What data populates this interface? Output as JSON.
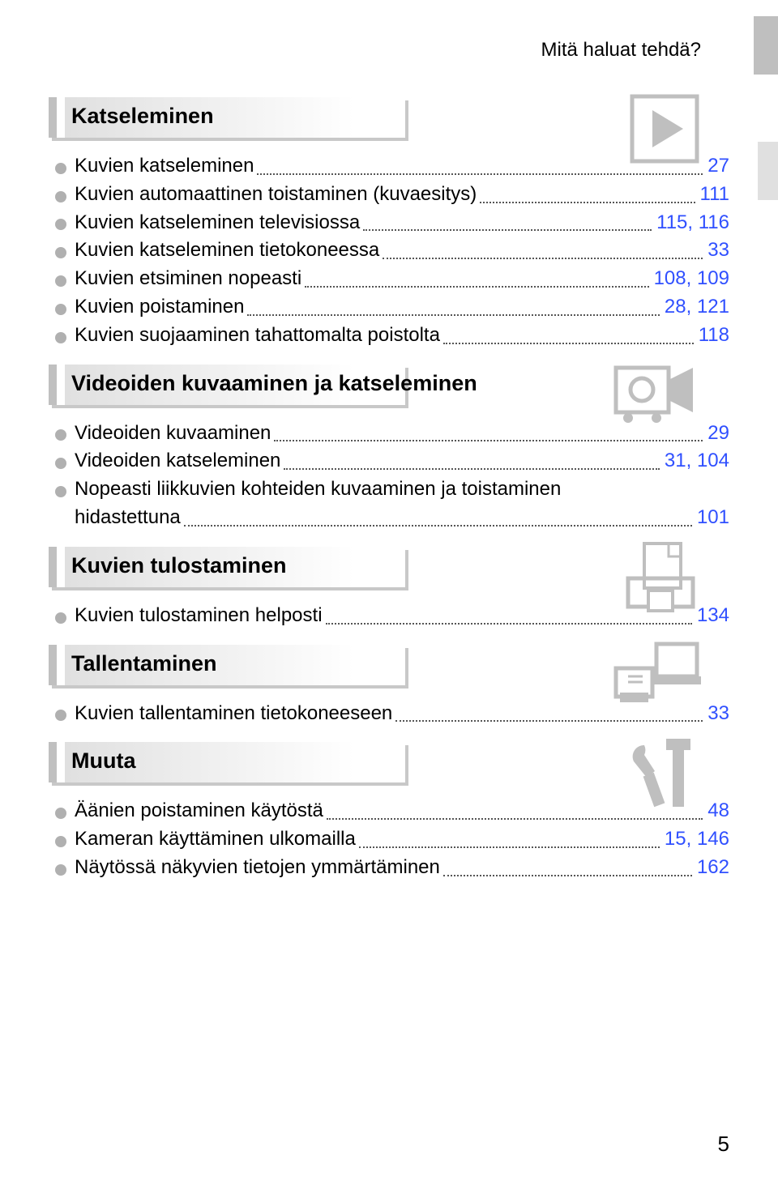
{
  "header": "Mitä haluat tehdä?",
  "footer_page": "5",
  "colors": {
    "page_link": "#3050ff",
    "bullet": "#b0b0b0",
    "shadow": "#c8c8c8",
    "icon": "#bfbfbf"
  },
  "sections": [
    {
      "title": "Katseleminen",
      "icon": "play",
      "items": [
        {
          "label": "Kuvien katseleminen",
          "page": "27"
        },
        {
          "label": "Kuvien automaattinen toistaminen (kuvaesitys)",
          "page": "111"
        },
        {
          "label": "Kuvien katseleminen televisiossa",
          "page": "115, 116"
        },
        {
          "label": "Kuvien katseleminen tietokoneessa",
          "page": "33"
        },
        {
          "label": "Kuvien etsiminen nopeasti",
          "page": "108, 109"
        },
        {
          "label": "Kuvien poistaminen",
          "page": "28, 121"
        },
        {
          "label": "Kuvien suojaaminen tahattomalta poistolta",
          "page": "118"
        }
      ]
    },
    {
      "title": "Videoiden kuvaaminen ja katseleminen",
      "icon": "video",
      "items": [
        {
          "label": "Videoiden kuvaaminen",
          "page": "29"
        },
        {
          "label": "Videoiden katseleminen",
          "page": "31, 104"
        },
        {
          "label": "Nopeasti liikkuvien kohteiden kuvaaminen ja toistaminen",
          "label2": "hidastettuna",
          "page": "101",
          "multiline": true
        }
      ]
    },
    {
      "title": "Kuvien tulostaminen",
      "icon": "print",
      "items": [
        {
          "label": "Kuvien tulostaminen helposti",
          "page": "134"
        }
      ]
    },
    {
      "title": "Tallentaminen",
      "icon": "save",
      "items": [
        {
          "label": "Kuvien tallentaminen tietokoneeseen",
          "page": "33"
        }
      ]
    },
    {
      "title": "Muuta",
      "icon": "tools",
      "items": [
        {
          "label": "Äänien poistaminen käytöstä",
          "page": "48"
        },
        {
          "label": "Kameran käyttäminen ulkomailla",
          "page": "15, 146"
        },
        {
          "label": "Näytössä näkyvien tietojen ymmärtäminen",
          "page": "162"
        }
      ]
    }
  ]
}
